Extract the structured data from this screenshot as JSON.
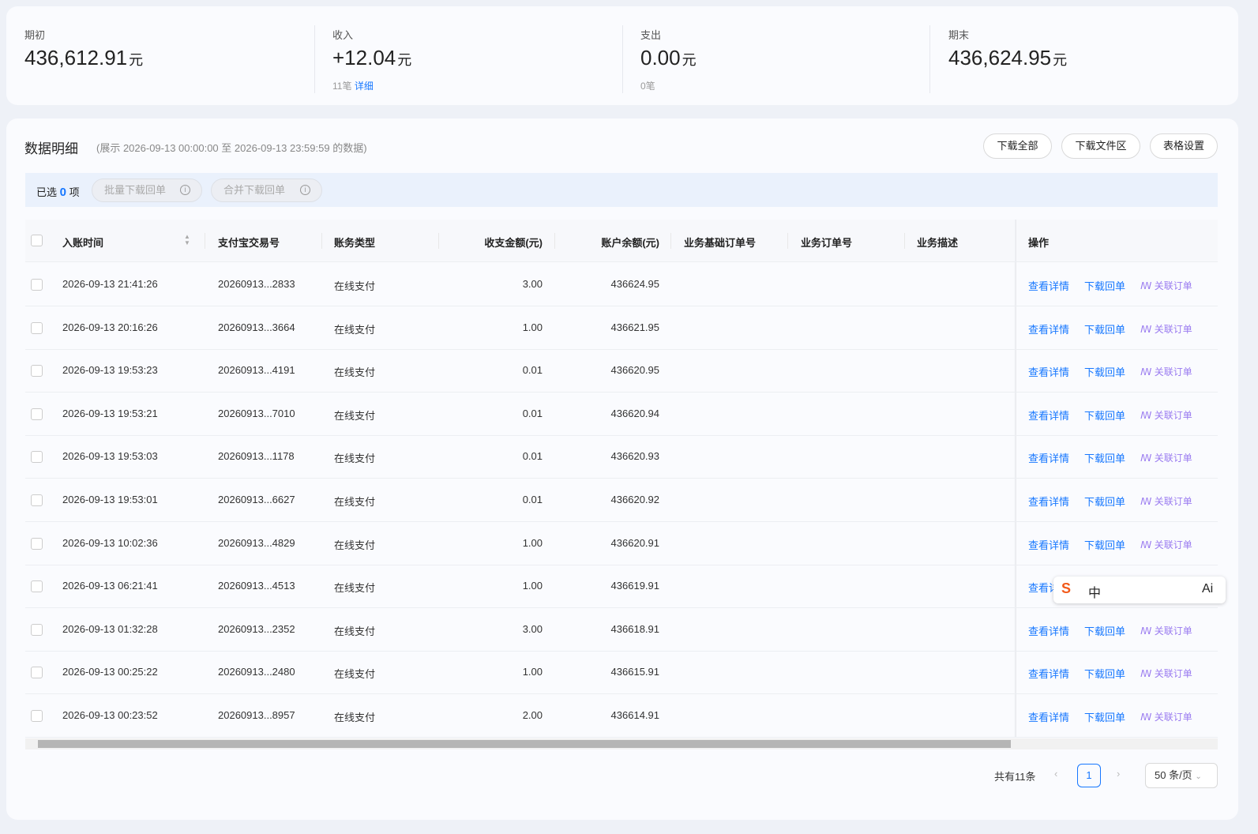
{
  "summary": [
    {
      "label": "期初",
      "amount": "436,612.91",
      "unit": "元"
    },
    {
      "label": "收入",
      "amount": "+12.04",
      "unit": "元",
      "count": "11笔",
      "link": "详细"
    },
    {
      "label": "支出",
      "amount": "0.00",
      "unit": "元",
      "count": "0笔"
    },
    {
      "label": "期末",
      "amount": "436,624.95",
      "unit": "元"
    }
  ],
  "detail": {
    "title": "数据明细",
    "range": "(展示 2026-09-13 00:00:00 至 2026-09-13 23:59:59 的数据)",
    "buttons": [
      "下载全部",
      "下载文件区",
      "表格设置"
    ]
  },
  "selection": {
    "prefix": "已选",
    "count": "0",
    "suffix": "项",
    "actions": [
      "批量下载回单",
      "合并下载回单"
    ]
  },
  "table": {
    "columns": [
      "入账时间",
      "支付宝交易号",
      "账务类型",
      "收支金额(元)",
      "账户余额(元)",
      "业务基础订单号",
      "业务订单号",
      "业务描述",
      "操作"
    ],
    "rows": [
      [
        "2026-09-13 21:41:26",
        "20260913...2833",
        "在线支付",
        "3.00",
        "436624.95"
      ],
      [
        "2026-09-13 20:16:26",
        "20260913...3664",
        "在线支付",
        "1.00",
        "436621.95"
      ],
      [
        "2026-09-13 19:53:23",
        "20260913...4191",
        "在线支付",
        "0.01",
        "436620.95"
      ],
      [
        "2026-09-13 19:53:21",
        "20260913...7010",
        "在线支付",
        "0.01",
        "436620.94"
      ],
      [
        "2026-09-13 19:53:03",
        "20260913...1178",
        "在线支付",
        "0.01",
        "436620.93"
      ],
      [
        "2026-09-13 19:53:01",
        "20260913...6627",
        "在线支付",
        "0.01",
        "436620.92"
      ],
      [
        "2026-09-13 10:02:36",
        "20260913...4829",
        "在线支付",
        "1.00",
        "436620.91"
      ],
      [
        "2026-09-13 06:21:41",
        "20260913...4513",
        "在线支付",
        "1.00",
        "436619.91"
      ],
      [
        "2026-09-13 01:32:28",
        "20260913...2352",
        "在线支付",
        "3.00",
        "436618.91"
      ],
      [
        "2026-09-13 00:25:22",
        "20260913...2480",
        "在线支付",
        "1.00",
        "436615.91"
      ],
      [
        "2026-09-13 00:23:52",
        "20260913...8957",
        "在线支付",
        "2.00",
        "436614.91"
      ]
    ],
    "row_actions": [
      "查看详情",
      "下载回单",
      "关联订单"
    ]
  },
  "pagination": {
    "total": "共有11条",
    "page": "1",
    "page_size": "50 条/页"
  },
  "ime_toolbar": [
    "中",
    "Ai"
  ]
}
